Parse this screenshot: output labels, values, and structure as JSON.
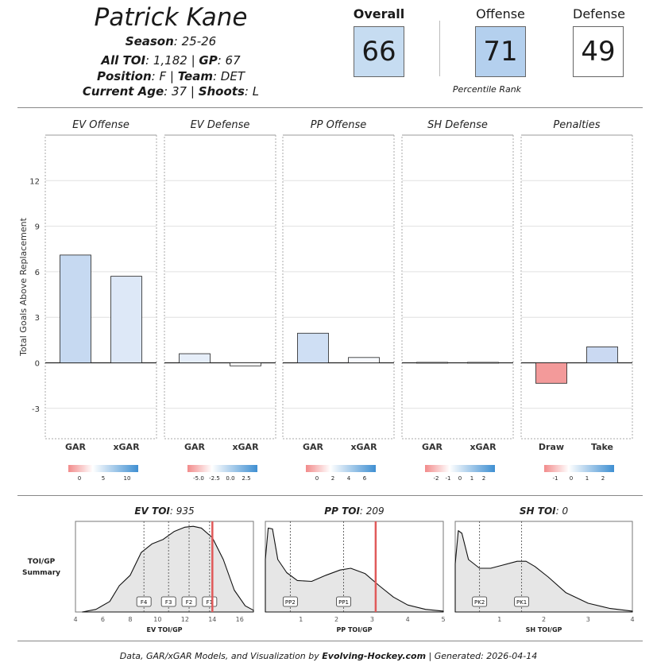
{
  "player": {
    "name": "Patrick Kane",
    "season_label": "Season",
    "season_value": "25-26",
    "toi_label": "All TOI",
    "toi_value": "1,182",
    "gp_label": "GP",
    "gp_value": "67",
    "position_label": "Position",
    "position_value": "F",
    "team_label": "Team",
    "team_value": "DET",
    "age_label": "Current Age",
    "age_value": "37",
    "shoots_label": "Shoots",
    "shoots_value": "L"
  },
  "scores": {
    "overall_label": "Overall",
    "overall_value": "66",
    "offense_label": "Offense",
    "offense_value": "71",
    "defense_label": "Defense",
    "defense_value": "49",
    "percentile_caption": "Percentile Rank",
    "overall_color": "#c6dcf1",
    "offense_color": "#b4d0ee",
    "defense_color": "#ffffff"
  },
  "chart_data": [
    {
      "type": "bar",
      "ylabel": "Total Goals Above Replacement",
      "ylim": [
        -5,
        15
      ],
      "yticks": [
        -3,
        0,
        3,
        6,
        9,
        12
      ],
      "grid": true,
      "panels": [
        {
          "title": "EV Offense",
          "categories": [
            "GAR",
            "xGAR"
          ],
          "values": [
            7.1,
            5.7
          ],
          "colors": [
            "#c6d9f1",
            "#dde8f7"
          ],
          "legend": {
            "ticks": [
              "0",
              "5",
              "10"
            ]
          }
        },
        {
          "title": "EV Defense",
          "categories": [
            "GAR",
            "xGAR"
          ],
          "values": [
            0.6,
            -0.2
          ],
          "colors": [
            "#e6eef9",
            "#ffffff"
          ],
          "legend": {
            "ticks": [
              "-5.0",
              "-2.5",
              "0.0",
              "2.5"
            ]
          }
        },
        {
          "title": "PP Offense",
          "categories": [
            "GAR",
            "xGAR"
          ],
          "values": [
            1.95,
            0.35
          ],
          "colors": [
            "#cfdff4",
            "#f7f9fd"
          ],
          "legend": {
            "ticks": [
              "0",
              "2",
              "4",
              "6"
            ]
          }
        },
        {
          "title": "SH Defense",
          "categories": [
            "GAR",
            "xGAR"
          ],
          "values": [
            0.03,
            0.03
          ],
          "colors": [
            "#ffffff",
            "#ffffff"
          ],
          "legend": {
            "ticks": [
              "-2",
              "-1",
              "0",
              "1",
              "2"
            ]
          }
        },
        {
          "title": "Penalties",
          "categories": [
            "Draw",
            "Take"
          ],
          "values": [
            -1.35,
            1.05
          ],
          "colors": [
            "#f39a9a",
            "#cad9f2"
          ],
          "legend": {
            "ticks": [
              "-1",
              "0",
              "1",
              "2"
            ]
          }
        }
      ]
    },
    {
      "type": "area",
      "side_label_1": "TOI/GP",
      "side_label_2": "Summary",
      "panels": [
        {
          "title_label": "EV TOI",
          "title_value": "935",
          "xlabel": "EV TOI/GP",
          "xlim": [
            4,
            17
          ],
          "xticks": [
            4,
            6,
            8,
            10,
            12,
            14,
            16
          ],
          "markers": [
            {
              "label": "F4",
              "x": 9.0
            },
            {
              "label": "F3",
              "x": 10.8
            },
            {
              "label": "F2",
              "x": 12.3
            },
            {
              "label": "F1",
              "x": 13.8
            }
          ],
          "player_value": 14.0
        },
        {
          "title_label": "PP TOI",
          "title_value": "209",
          "xlabel": "PP TOI/GP",
          "xlim": [
            0,
            5
          ],
          "xticks": [
            1,
            2,
            3,
            4,
            5
          ],
          "markers": [
            {
              "label": "PP2",
              "x": 0.7
            },
            {
              "label": "PP1",
              "x": 2.2
            }
          ],
          "player_value": 3.1
        },
        {
          "title_label": "SH TOI",
          "title_value": "0",
          "xlabel": "SH TOI/GP",
          "xlim": [
            0,
            4
          ],
          "xticks": [
            1,
            2,
            3,
            4
          ],
          "markers": [
            {
              "label": "PK2",
              "x": 0.55
            },
            {
              "label": "PK1",
              "x": 1.5
            }
          ],
          "player_value": null
        }
      ]
    }
  ],
  "footer": {
    "prefix": "Data, GAR/xGAR Models, and Visualization by ",
    "brand": "Evolving-Hockey.com",
    "suffix": " | Generated: 2026-04-14"
  }
}
